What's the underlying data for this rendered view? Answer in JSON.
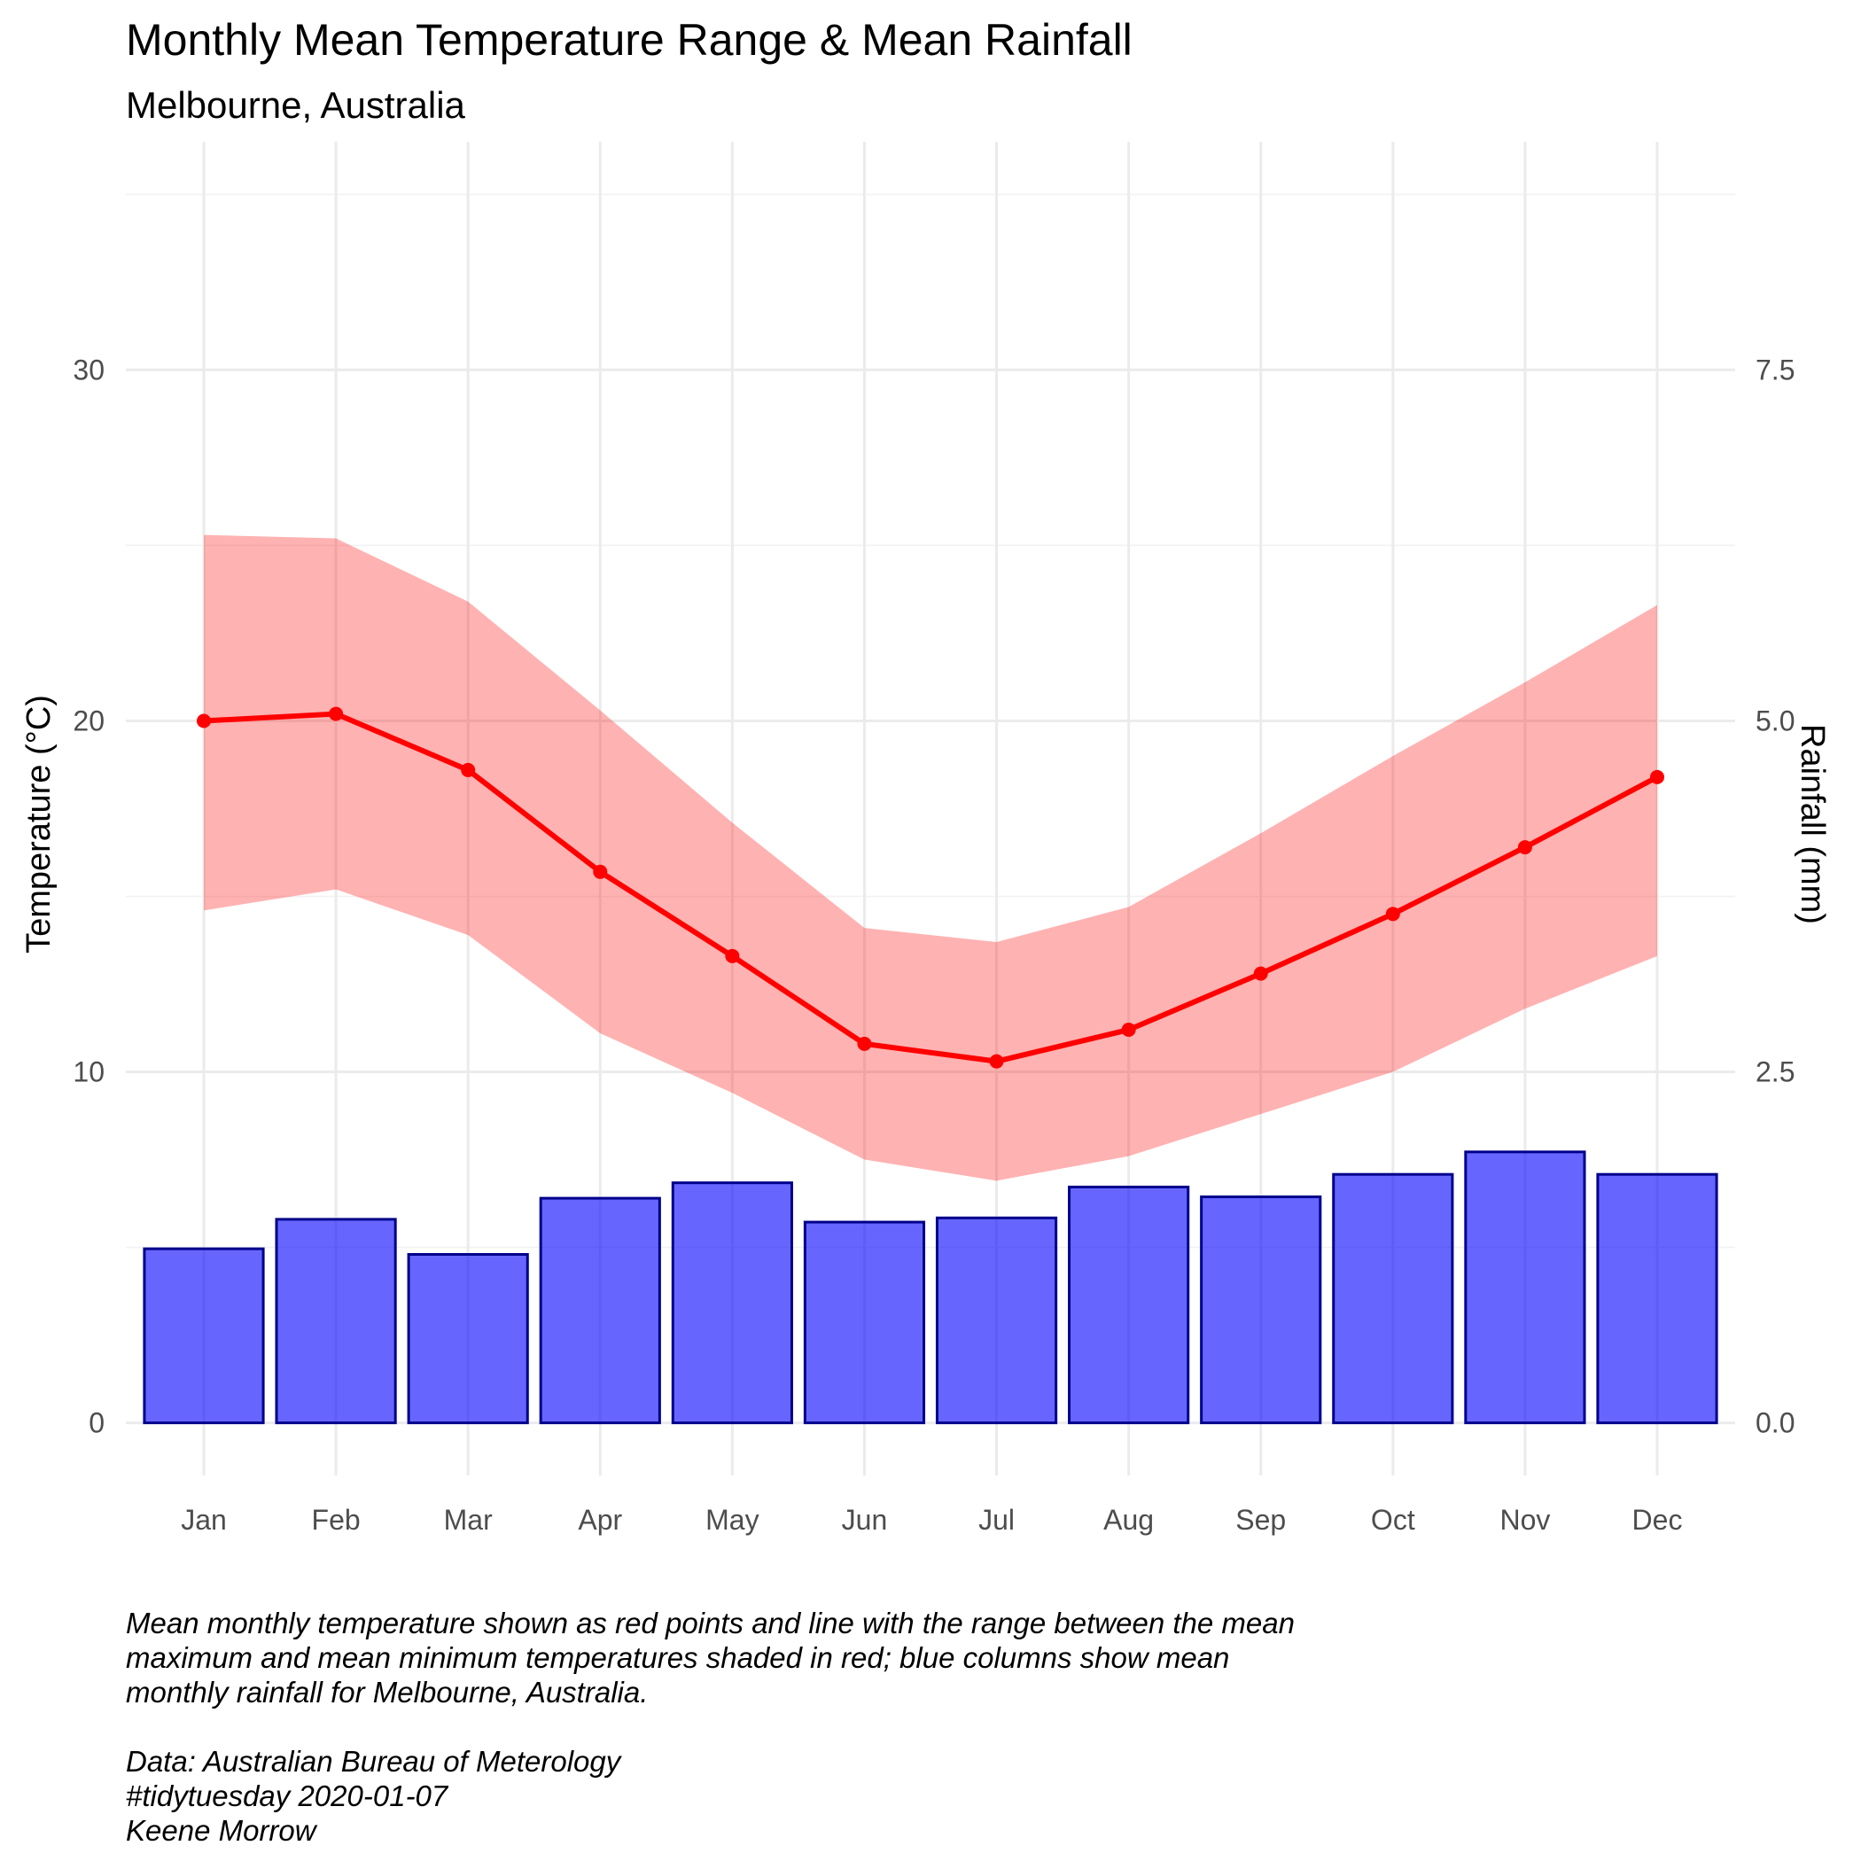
{
  "chart_data": {
    "type": "bar+line",
    "title": "Monthly Mean Temperature Range & Mean Rainfall",
    "subtitle": "Melbourne, Australia",
    "ylabel": "Temperature (°C)",
    "y2label": "Rainfall (mm)",
    "categories": [
      "Jan",
      "Feb",
      "Mar",
      "Apr",
      "May",
      "Jun",
      "Jul",
      "Aug",
      "Sep",
      "Oct",
      "Nov",
      "Dec"
    ],
    "temperature_mean": [
      20.0,
      20.2,
      18.6,
      15.7,
      13.3,
      10.8,
      10.3,
      11.2,
      12.8,
      14.5,
      16.4,
      18.4
    ],
    "temperature_max": [
      25.3,
      25.2,
      23.4,
      20.3,
      17.1,
      14.1,
      13.7,
      14.7,
      16.8,
      19.0,
      21.1,
      23.3
    ],
    "temperature_min": [
      14.6,
      15.2,
      13.9,
      11.1,
      9.4,
      7.5,
      6.9,
      7.6,
      8.8,
      10.0,
      11.8,
      13.3
    ],
    "rainfall": [
      1.24,
      1.45,
      1.2,
      1.6,
      1.71,
      1.43,
      1.46,
      1.68,
      1.61,
      1.77,
      1.93,
      1.77
    ],
    "ylim": [
      -1.5,
      36.5
    ],
    "y_ticks": [
      "0",
      "10",
      "20",
      "30"
    ],
    "y2_ticks": [
      "0.0",
      "2.5",
      "5.0",
      "7.5"
    ],
    "grid": true,
    "colors": {
      "line": "#ff0000",
      "ribbon": "#ff0000",
      "bar_fill": "#0000ff",
      "bar_stroke": "#00008b"
    },
    "caption": [
      "Mean monthly temperature shown as red points and line with the range between the mean",
      "maximum and mean minimum temperatures shaded in red; blue columns show mean",
      "monthly rainfall for Melbourne, Australia.",
      "",
      "Data: Australian Bureau of Meterology",
      "#tidytuesday 2020-01-07",
      "Keene Morrow"
    ]
  }
}
